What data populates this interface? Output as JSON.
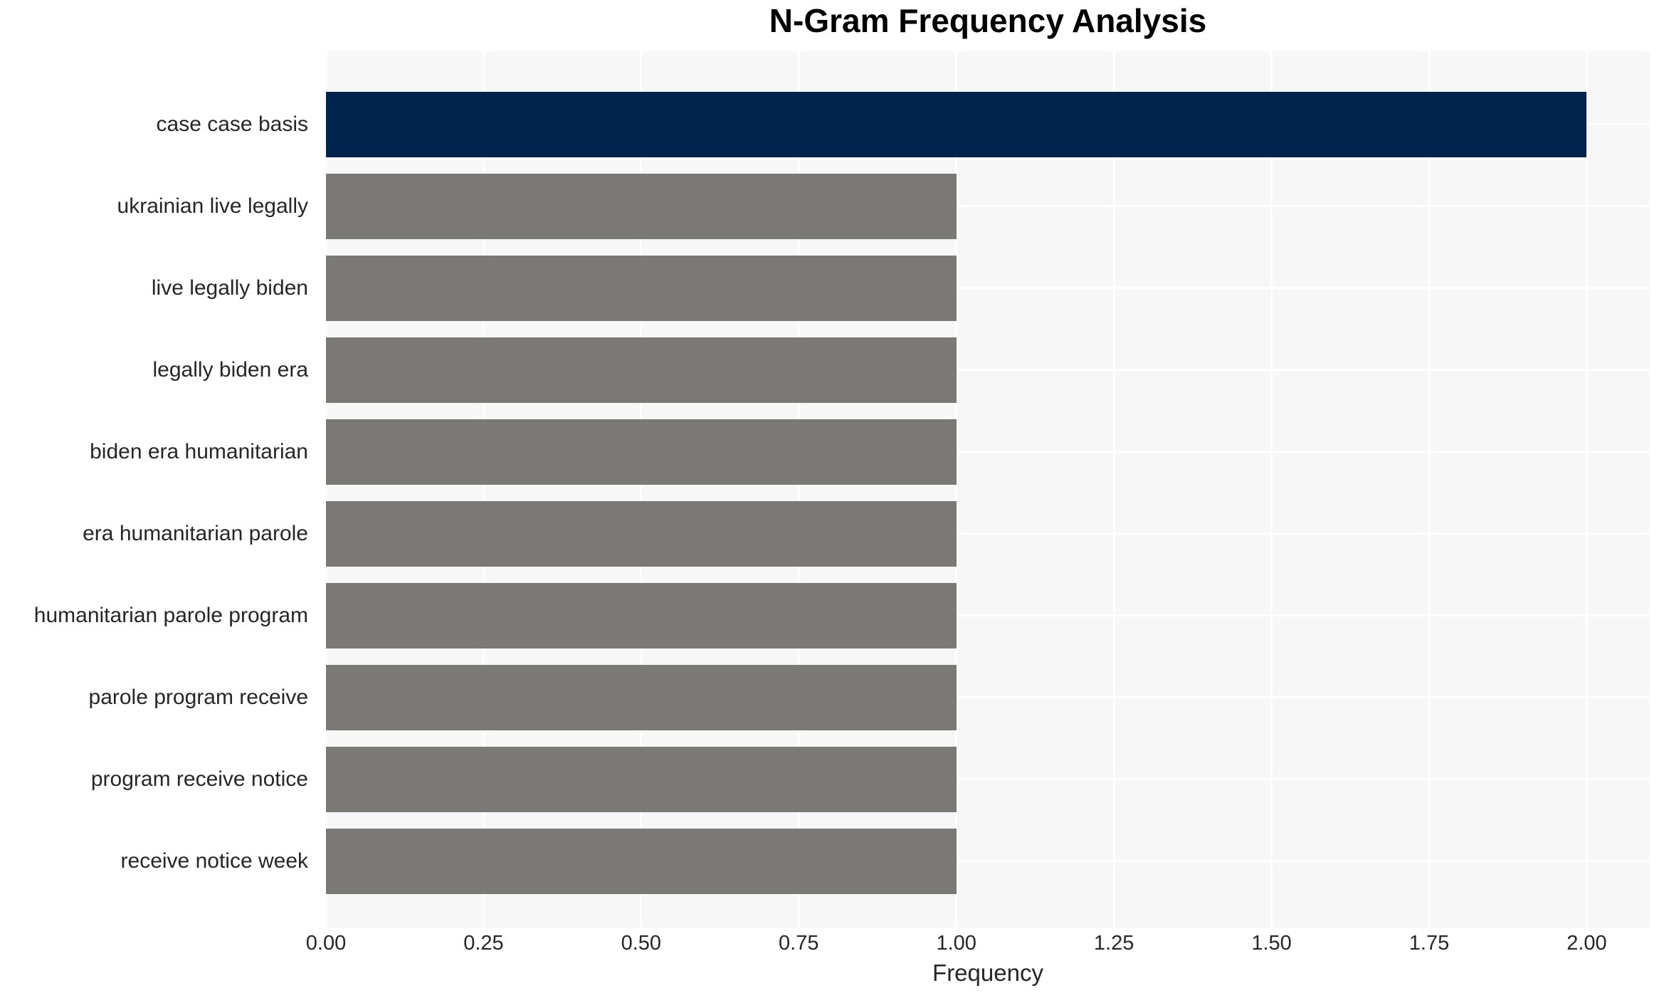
{
  "chart_data": {
    "type": "bar",
    "orientation": "horizontal",
    "title": "N-Gram Frequency Analysis",
    "xlabel": "Frequency",
    "ylabel": "",
    "categories": [
      "case case basis",
      "ukrainian live legally",
      "live legally biden",
      "legally biden era",
      "biden era humanitarian",
      "era humanitarian parole",
      "humanitarian parole program",
      "parole program receive",
      "program receive notice",
      "receive notice week"
    ],
    "values": [
      2,
      1,
      1,
      1,
      1,
      1,
      1,
      1,
      1,
      1
    ],
    "bar_colors": [
      "#02234d",
      "#7b7975",
      "#7b7975",
      "#7b7975",
      "#7b7975",
      "#7b7975",
      "#7b7975",
      "#7b7975",
      "#7b7975",
      "#7b7975"
    ],
    "xlim": [
      0,
      2.1
    ],
    "xticks": [
      "0.00",
      "0.25",
      "0.50",
      "0.75",
      "1.00",
      "1.25",
      "1.50",
      "1.75",
      "2.00"
    ],
    "xtick_values": [
      0,
      0.25,
      0.5,
      0.75,
      1.0,
      1.25,
      1.5,
      1.75,
      2.0
    ],
    "grid": true,
    "legend": false,
    "colors": {
      "plot_background": "#f7f7f7",
      "gridline": "#ffffff",
      "text": "#262626",
      "title_text": "#000000",
      "highlight_bar": "#02234d",
      "default_bar": "#7b7975"
    }
  }
}
